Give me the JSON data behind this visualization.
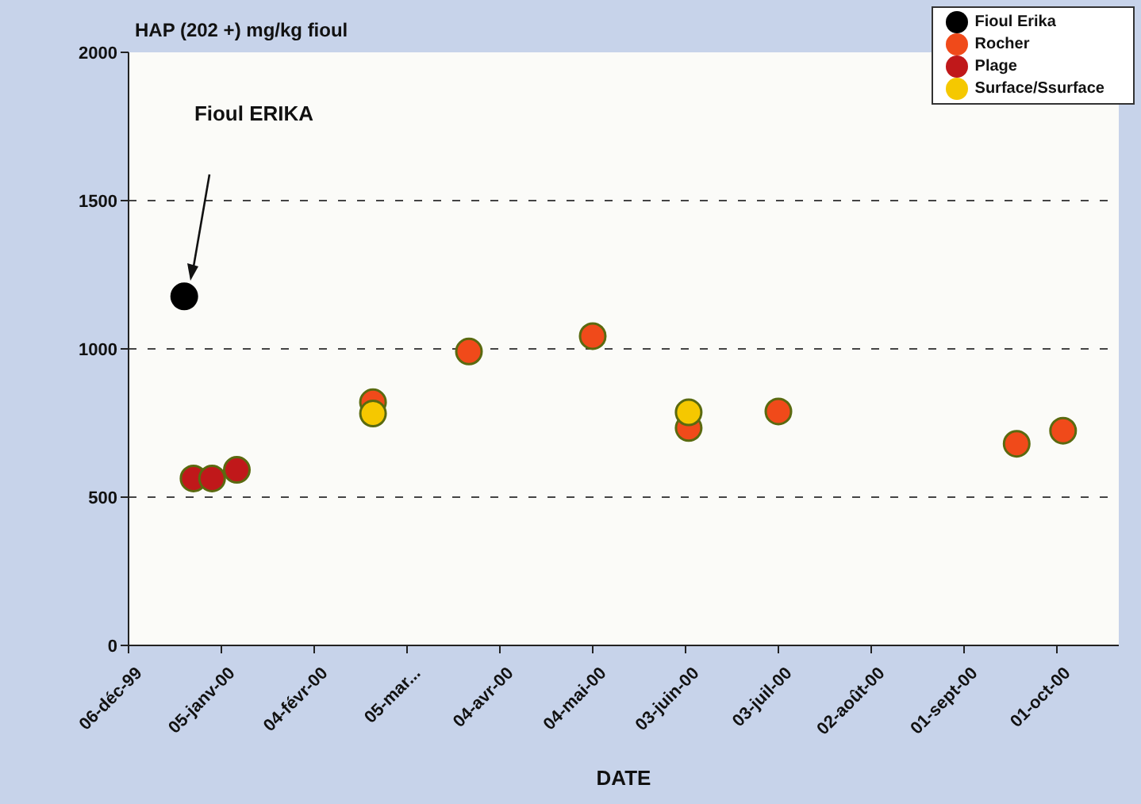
{
  "chart_data": {
    "type": "scatter",
    "ylabel": "HAP (202 +) mg/kg fioul",
    "xlabel": "DATE",
    "xlim": [
      "1999-12-06",
      "2000-10-21"
    ],
    "xticks": [
      {
        "value": "1999-12-06",
        "label": "06-déc-99"
      },
      {
        "value": "2000-01-05",
        "label": "05-janv-00"
      },
      {
        "value": "2000-02-04",
        "label": "04-févr-00"
      },
      {
        "value": "2000-03-05",
        "label": "05-mar..."
      },
      {
        "value": "2000-04-04",
        "label": "04-avr-00"
      },
      {
        "value": "2000-05-04",
        "label": "04-mai-00"
      },
      {
        "value": "2000-06-03",
        "label": "03-juin-00"
      },
      {
        "value": "2000-07-03",
        "label": "03-juil-00"
      },
      {
        "value": "2000-08-02",
        "label": "02-août-00"
      },
      {
        "value": "2000-09-01",
        "label": "01-sept-00"
      },
      {
        "value": "2000-10-01",
        "label": "01-oct-00"
      }
    ],
    "ylim": [
      0,
      2000
    ],
    "yticks": [
      0,
      500,
      1000,
      1500,
      2000
    ],
    "grid": "y",
    "legend": "top right",
    "marker": "circle",
    "series": [
      {
        "name": "Fioul Erika",
        "color": "#000000",
        "x": [
          "1999-12-24"
        ],
        "values": [
          1177
        ]
      },
      {
        "name": "Rocher",
        "color": "#f04a1a",
        "x": [
          "2000-02-23",
          "2000-03-25",
          "2000-05-04",
          "2000-06-04",
          "2000-07-03",
          "2000-09-18",
          "2000-10-03"
        ],
        "values": [
          820,
          991,
          1043,
          733,
          789,
          680,
          724
        ]
      },
      {
        "name": "Plage",
        "color": "#c0181a",
        "x": [
          "1999-12-27",
          "2000-01-02",
          "2000-01-10"
        ],
        "values": [
          563,
          563,
          592
        ]
      },
      {
        "name": "Surface/Ssurface",
        "color": "#f5c800",
        "x": [
          "2000-02-23",
          "2000-06-04"
        ],
        "values": [
          782,
          786
        ]
      }
    ],
    "annotations": [
      "Fioul ERIKA"
    ]
  }
}
